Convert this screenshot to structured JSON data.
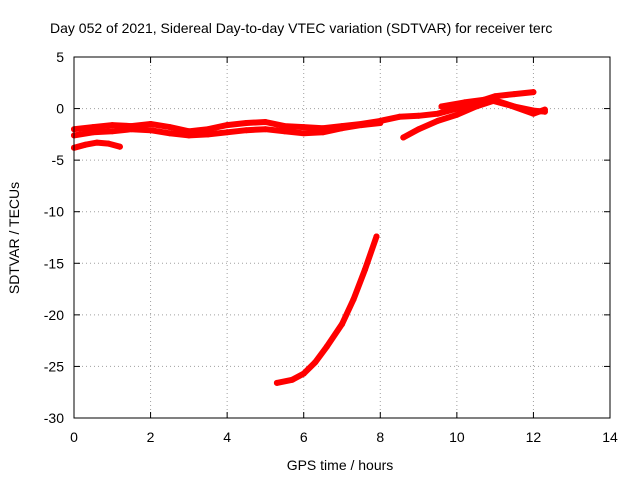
{
  "chart_data": {
    "type": "line",
    "title": "Day 052 of 2021, Sidereal Day-to-day VTEC variation (SDTVAR) for receiver terc",
    "xlabel": "GPS time / hours",
    "ylabel": "SDTVAR / TECUs",
    "xlim": [
      0,
      14
    ],
    "ylim": [
      -30,
      5
    ],
    "xticks": [
      0,
      2,
      4,
      6,
      8,
      10,
      12,
      14
    ],
    "yticks": [
      5,
      0,
      -5,
      -10,
      -15,
      -20,
      -25,
      -30
    ],
    "grid": true,
    "legend": "none",
    "color": "#ff0000",
    "series": [
      {
        "x": [
          0,
          0.5,
          1,
          1.5,
          2,
          2.5,
          3,
          3.5,
          4,
          4.5,
          5,
          5.5,
          6,
          6.5,
          7,
          7.5,
          8,
          8.5,
          9,
          9.5,
          10,
          10.5,
          11,
          11.5,
          12
        ],
        "y": [
          -2.0,
          -1.8,
          -1.6,
          -1.7,
          -1.5,
          -1.8,
          -2.2,
          -2.0,
          -1.6,
          -1.4,
          -1.3,
          -1.7,
          -1.8,
          -1.9,
          -1.7,
          -1.5,
          -1.2,
          -0.8,
          -0.7,
          -0.5,
          0.0,
          0.6,
          1.2,
          1.4,
          1.6
        ]
      },
      {
        "x": [
          0,
          0.5,
          1,
          1.5,
          2,
          2.5,
          3,
          3.5,
          4,
          4.5,
          5,
          5.5,
          6,
          6.5,
          7,
          7.5,
          8
        ],
        "y": [
          -2.6,
          -2.3,
          -2.2,
          -2.0,
          -2.1,
          -2.4,
          -2.6,
          -2.5,
          -2.3,
          -2.1,
          -2.0,
          -2.2,
          -2.4,
          -2.3,
          -1.9,
          -1.6,
          -1.4
        ]
      },
      {
        "x": [
          0,
          0.3,
          0.6,
          0.9,
          1.2
        ],
        "y": [
          -3.8,
          -3.5,
          -3.3,
          -3.4,
          -3.7
        ]
      },
      {
        "x": [
          8.6,
          9.0,
          9.5,
          10.0,
          10.5,
          11.0,
          11.5,
          12.0,
          12.3
        ],
        "y": [
          -2.8,
          -2.0,
          -1.2,
          -0.6,
          0.2,
          0.8,
          0.2,
          -0.2,
          -0.3
        ]
      },
      {
        "x": [
          9.6,
          10.2,
          10.8,
          11.4,
          12.0,
          12.3
        ],
        "y": [
          0.2,
          0.6,
          0.9,
          0.3,
          -0.5,
          -0.1
        ]
      },
      {
        "x": [
          5.3,
          5.7,
          6.0,
          6.3,
          6.6,
          7.0,
          7.3,
          7.6,
          7.9
        ],
        "y": [
          -26.6,
          -26.3,
          -25.7,
          -24.6,
          -23.1,
          -20.9,
          -18.5,
          -15.6,
          -12.4
        ]
      }
    ]
  }
}
